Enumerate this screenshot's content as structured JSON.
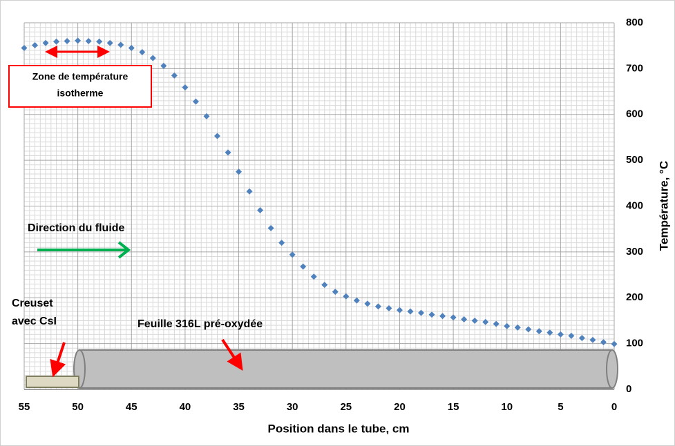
{
  "chart_data": {
    "type": "scatter",
    "x_label": "Position dans le tube, cm",
    "y_label": "Température, °C",
    "x": [
      55,
      54,
      53,
      52,
      51,
      50,
      49,
      48,
      47,
      46,
      45,
      44,
      43,
      42,
      41,
      40,
      39,
      38,
      37,
      36,
      35,
      34,
      33,
      32,
      31,
      30,
      29,
      28,
      27,
      26,
      25,
      24,
      23,
      22,
      21,
      20,
      19,
      18,
      17,
      16,
      15,
      14,
      13,
      12,
      11,
      10,
      9,
      8,
      7,
      6,
      5,
      4,
      3,
      2,
      1,
      0
    ],
    "values": [
      745,
      751,
      756,
      759,
      760,
      761,
      760,
      759,
      756,
      752,
      745,
      736,
      723,
      706,
      685,
      659,
      628,
      596,
      553,
      517,
      475,
      432,
      391,
      352,
      320,
      294,
      268,
      246,
      228,
      213,
      203,
      194,
      187,
      181,
      177,
      173,
      170,
      167,
      163,
      160,
      157,
      153,
      150,
      147,
      143,
      138,
      135,
      131,
      127,
      124,
      120,
      117,
      112,
      108,
      103,
      99
    ],
    "color": "#4f81bd",
    "xlim": [
      55,
      0
    ],
    "xticks": [
      55,
      50,
      45,
      40,
      35,
      30,
      25,
      20,
      15,
      10,
      5,
      0
    ],
    "ylim": [
      0,
      800
    ],
    "yticks": [
      0,
      100,
      200,
      300,
      400,
      500,
      600,
      700,
      800
    ],
    "y_axis_side": "right",
    "grid": true,
    "annotations": {
      "isotherm": [
        "Zone de température",
        "isotherme"
      ],
      "flow": "Direction du fluide",
      "crucible": [
        "Creuset",
        "avec CsI"
      ],
      "foil": "Feuille 316L pré-oxydée"
    }
  }
}
